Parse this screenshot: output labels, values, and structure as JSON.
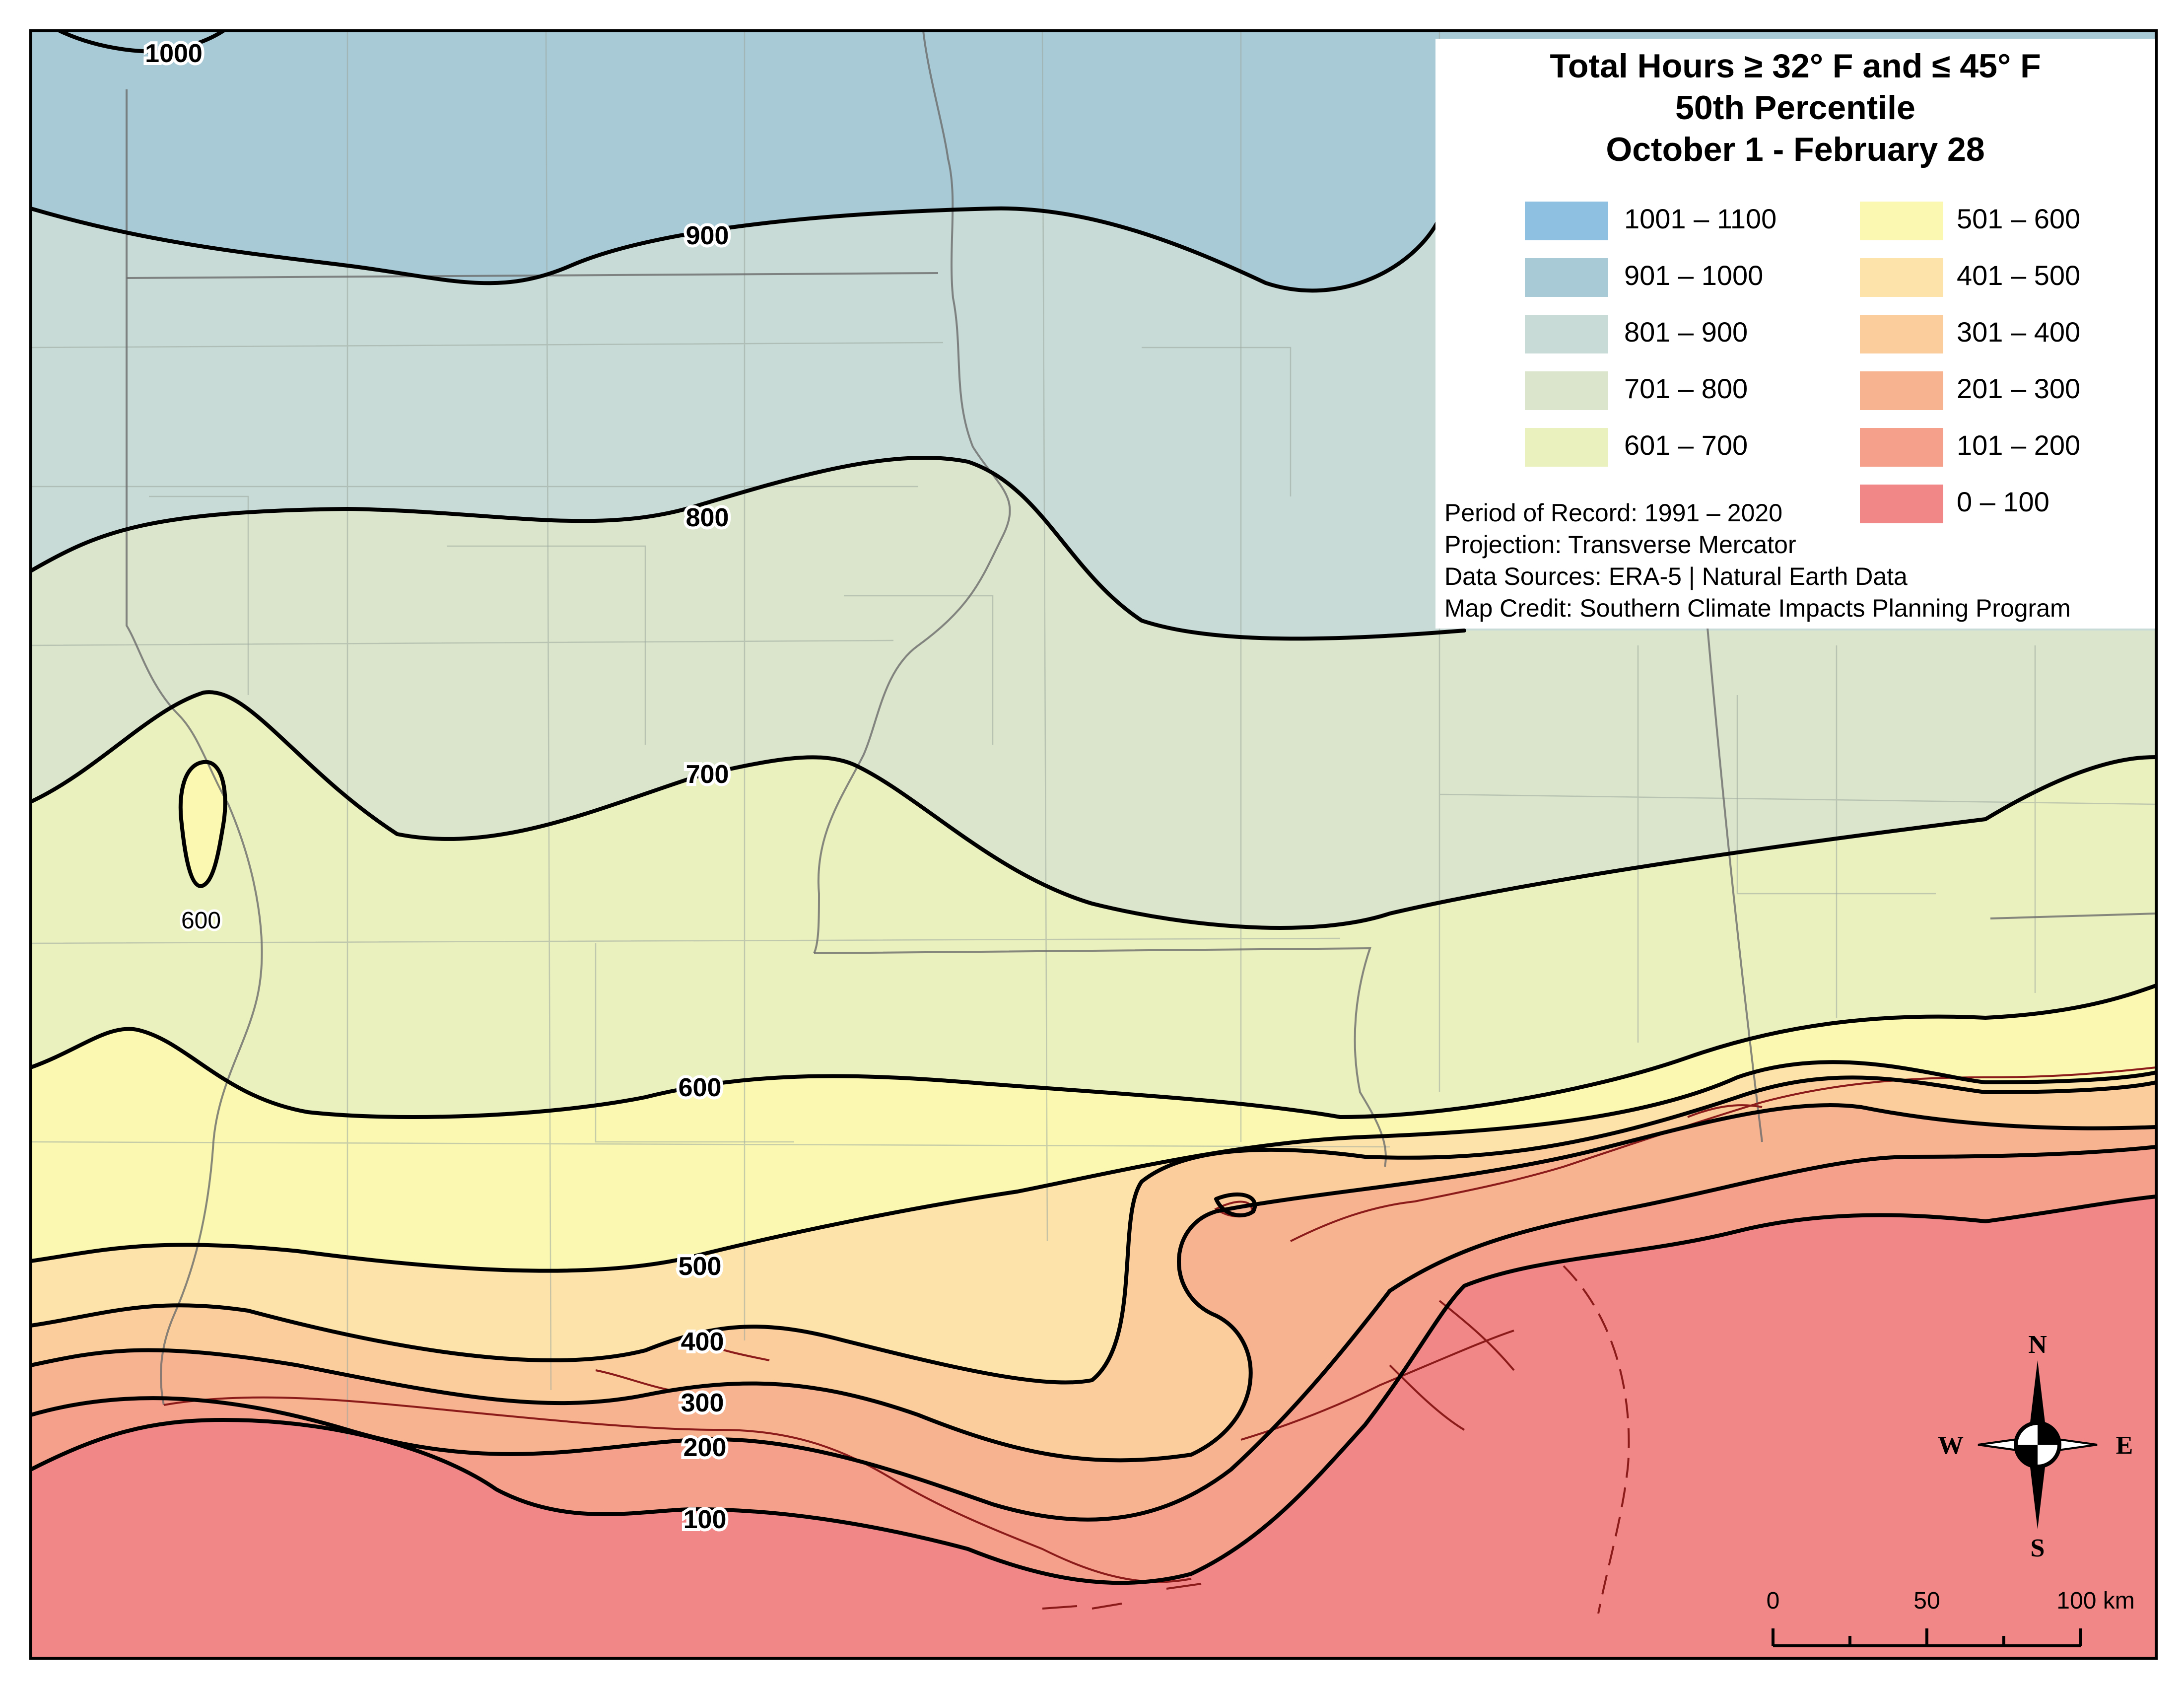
{
  "map": {
    "title_lines": [
      "Total Hours ≥ 32° F and ≤ 45° F",
      "50th Percentile",
      "October 1 - February 28"
    ],
    "legend_left": [
      {
        "label": "1001 – 1100",
        "color": "#8ec0e2"
      },
      {
        "label": "901 – 1000",
        "color": "#a8cad6"
      },
      {
        "label": "801 – 900",
        "color": "#c8dbd6"
      },
      {
        "label": "701 – 800",
        "color": "#dbe5cb"
      },
      {
        "label": "601 – 700",
        "color": "#ebf0bf"
      }
    ],
    "legend_right": [
      {
        "label": "501 – 600",
        "color": "#fbf9b1"
      },
      {
        "label": "401 – 500",
        "color": "#fde3a9"
      },
      {
        "label": "301 – 400",
        "color": "#fbcd9c"
      },
      {
        "label": "201 – 300",
        "color": "#f7b290"
      },
      {
        "label": "101 – 200",
        "color": "#f5a08a"
      },
      {
        "label": "0 – 100",
        "color": "#f18787"
      }
    ],
    "metadata": [
      "Period of Record: 1991 – 2020",
      "Projection: Transverse Mercator",
      "Data Sources: ERA-5 | Natural Earth Data",
      "Map Credit: Southern Climate Impacts Planning Program"
    ],
    "contour_labels": [
      "1000",
      "900",
      "800",
      "700",
      "600",
      "600",
      "500",
      "400",
      "300",
      "200",
      "100"
    ],
    "compass": {
      "north": "N",
      "south": "S",
      "east": "E",
      "west": "W"
    },
    "scale_bar": {
      "ticks": [
        "0",
        "50",
        "100 km"
      ]
    }
  }
}
